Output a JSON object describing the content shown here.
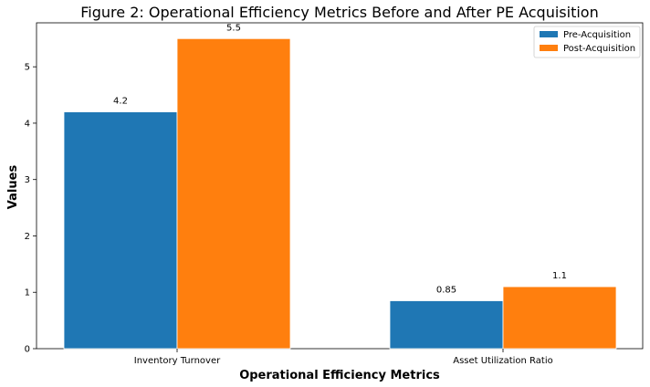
{
  "chart_data": {
    "type": "bar",
    "title": "Figure 2: Operational Efficiency Metrics Before and After PE Acquisition",
    "xlabel": "Operational Efficiency Metrics",
    "ylabel": "Values",
    "categories": [
      "Inventory Turnover",
      "Asset Utilization Ratio"
    ],
    "series": [
      {
        "name": "Pre-Acquisition",
        "values": [
          4.2,
          0.85
        ],
        "labels": [
          "4.2",
          "0.85"
        ],
        "color": "#1f77b4"
      },
      {
        "name": "Post-Acquisition",
        "values": [
          5.5,
          1.1
        ],
        "labels": [
          "5.5",
          "1.1"
        ],
        "color": "#ff7f0e"
      }
    ],
    "ylim": [
      0,
      5.78
    ],
    "yticks": [
      0,
      1,
      2,
      3,
      4,
      5
    ],
    "grid": false,
    "legend_position": "top-right"
  }
}
